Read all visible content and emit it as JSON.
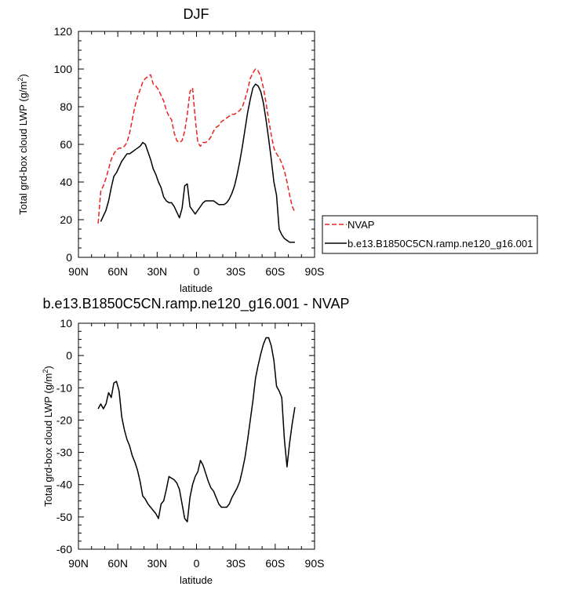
{
  "chart_data": [
    {
      "type": "line",
      "title": "DJF",
      "xlabel": "latitude",
      "ylabel_parts": [
        "Total grd-box cloud LWP (g/m",
        "2",
        ")"
      ],
      "xlim": [
        90,
        -90
      ],
      "ylim": [
        0,
        120
      ],
      "xticks": [
        {
          "value": 90,
          "label": "90N"
        },
        {
          "value": 60,
          "label": "60N"
        },
        {
          "value": 30,
          "label": "30N"
        },
        {
          "value": 0,
          "label": "0"
        },
        {
          "value": -30,
          "label": "30S"
        },
        {
          "value": -60,
          "label": "60S"
        },
        {
          "value": -90,
          "label": "90S"
        }
      ],
      "yticks": [
        0,
        20,
        40,
        60,
        80,
        100,
        120
      ],
      "legend": {
        "position": "right",
        "entries": [
          "NVAP",
          "b.e13.B1850C5CN.ramp.ne120_g16.001"
        ]
      },
      "series": [
        {
          "name": "NVAP",
          "color": "#e8231f",
          "dash": "dashed",
          "x": [
            75,
            73,
            71,
            69,
            67,
            65,
            63,
            61,
            59,
            57,
            55,
            53,
            51,
            49,
            47,
            45,
            43,
            41,
            39,
            37,
            35,
            33,
            31,
            29,
            27,
            25,
            23,
            21,
            19,
            17,
            15,
            13,
            11,
            9,
            7,
            5,
            3,
            1,
            -1,
            -3,
            -5,
            -7,
            -9,
            -11,
            -13,
            -15,
            -17,
            -19,
            -21,
            -23,
            -25,
            -27,
            -29,
            -31,
            -33,
            -35,
            -37,
            -39,
            -41,
            -43,
            -45,
            -47,
            -49,
            -51,
            -53,
            -55,
            -57,
            -59,
            -61,
            -63,
            -65,
            -67,
            -69,
            -71,
            -73,
            -75
          ],
          "y": [
            18,
            35,
            38,
            42,
            47,
            52,
            55,
            57,
            58,
            58,
            59,
            61,
            66,
            73,
            80,
            85,
            89,
            93,
            95,
            96,
            97,
            92,
            91,
            89,
            86,
            83,
            78,
            75,
            73,
            66,
            62,
            61,
            62,
            67,
            76,
            88,
            90,
            74,
            61,
            59,
            61,
            61,
            62,
            64,
            67,
            69,
            70,
            72,
            73,
            74,
            75,
            76,
            76,
            77,
            78,
            80,
            84,
            89,
            95,
            98,
            100,
            99,
            96,
            90,
            82,
            73,
            65,
            58,
            55,
            53,
            50,
            46,
            40,
            33,
            27,
            24
          ]
        },
        {
          "name": "b.e13.B1850C5CN.ramp.ne120_g16.001",
          "color": "#000000",
          "dash": "solid",
          "x": [
            73,
            71,
            69,
            67,
            65,
            63,
            61,
            59,
            57,
            55,
            53,
            51,
            49,
            47,
            45,
            43,
            41,
            39,
            37,
            35,
            33,
            31,
            29,
            27,
            25,
            23,
            21,
            19,
            17,
            15,
            13,
            11,
            9,
            7,
            5,
            3,
            1,
            -1,
            -3,
            -5,
            -7,
            -9,
            -11,
            -13,
            -15,
            -17,
            -19,
            -21,
            -23,
            -25,
            -27,
            -29,
            -31,
            -33,
            -35,
            -37,
            -39,
            -41,
            -43,
            -45,
            -47,
            -49,
            -51,
            -53,
            -55,
            -57,
            -59,
            -61,
            -63,
            -65,
            -67,
            -69,
            -71,
            -73,
            -75
          ],
          "y": [
            19,
            22,
            25,
            30,
            37,
            43,
            45,
            48,
            51,
            53,
            55,
            55,
            56,
            57,
            58,
            59,
            61,
            60,
            56,
            52,
            47,
            44,
            40,
            37,
            32,
            30,
            29,
            29,
            27,
            24,
            21,
            26,
            38,
            39,
            27,
            25,
            23,
            25,
            27,
            29,
            30,
            30,
            30,
            30,
            29,
            28,
            28,
            28,
            29,
            31,
            34,
            38,
            44,
            51,
            59,
            68,
            77,
            84,
            90,
            92,
            91,
            88,
            82,
            73,
            63,
            52,
            40,
            33,
            15,
            12,
            10,
            9,
            8,
            8,
            8
          ]
        }
      ]
    },
    {
      "type": "line",
      "title": "b.e13.B1850C5CN.ramp.ne120_g16.001 - NVAP",
      "xlabel": "latitude",
      "ylabel_parts": [
        "Total grd-box cloud LWP (g/m",
        "2",
        ")"
      ],
      "xlim": [
        90,
        -90
      ],
      "ylim": [
        -60,
        10
      ],
      "xticks": [
        {
          "value": 90,
          "label": "90N"
        },
        {
          "value": 60,
          "label": "60N"
        },
        {
          "value": 30,
          "label": "30N"
        },
        {
          "value": 0,
          "label": "0"
        },
        {
          "value": -30,
          "label": "30S"
        },
        {
          "value": -60,
          "label": "60S"
        },
        {
          "value": -90,
          "label": "90S"
        }
      ],
      "yticks": [
        -60,
        -50,
        -40,
        -30,
        -20,
        -10,
        0,
        10
      ],
      "series": [
        {
          "name": "b.e13.B1850C5CN.ramp.ne120_g16.001 - NVAP",
          "color": "#000000",
          "dash": "solid",
          "x": [
            75,
            73,
            71,
            69,
            67,
            65,
            63,
            61,
            59,
            57,
            55,
            53,
            51,
            49,
            47,
            45,
            43,
            41,
            39,
            37,
            35,
            33,
            31,
            29,
            27,
            25,
            23,
            21,
            19,
            17,
            15,
            13,
            11,
            9,
            7,
            5,
            3,
            1,
            -1,
            -3,
            -5,
            -7,
            -9,
            -11,
            -13,
            -15,
            -17,
            -19,
            -21,
            -23,
            -25,
            -27,
            -29,
            -31,
            -33,
            -35,
            -37,
            -39,
            -41,
            -43,
            -45,
            -47,
            -49,
            -51,
            -53,
            -55,
            -57,
            -59,
            -61,
            -63,
            -65,
            -67,
            -69,
            -71,
            -73,
            -75
          ],
          "y": [
            -16.5,
            -15,
            -16.5,
            -15,
            -11.5,
            -13,
            -8.5,
            -8,
            -11,
            -19,
            -23,
            -26,
            -28,
            -31,
            -33,
            -35.5,
            -39,
            -43.5,
            -44.5,
            -46,
            -47,
            -48,
            -49,
            -50.5,
            -46,
            -45,
            -41.5,
            -37.5,
            -38,
            -38.5,
            -39.5,
            -41.5,
            -46,
            -50.5,
            -51.5,
            -44,
            -40,
            -37.5,
            -36,
            -32.5,
            -34,
            -36.5,
            -39,
            -41,
            -42,
            -44,
            -46,
            -47,
            -47,
            -47,
            -46,
            -44,
            -42.5,
            -41,
            -39,
            -35.5,
            -31.5,
            -26,
            -20,
            -14,
            -7,
            -3,
            0.5,
            3.5,
            5.5,
            5.5,
            3,
            -1.5,
            -9.5,
            -11,
            -13,
            -26,
            -34.5,
            -27,
            -21,
            -16
          ]
        }
      ]
    }
  ]
}
